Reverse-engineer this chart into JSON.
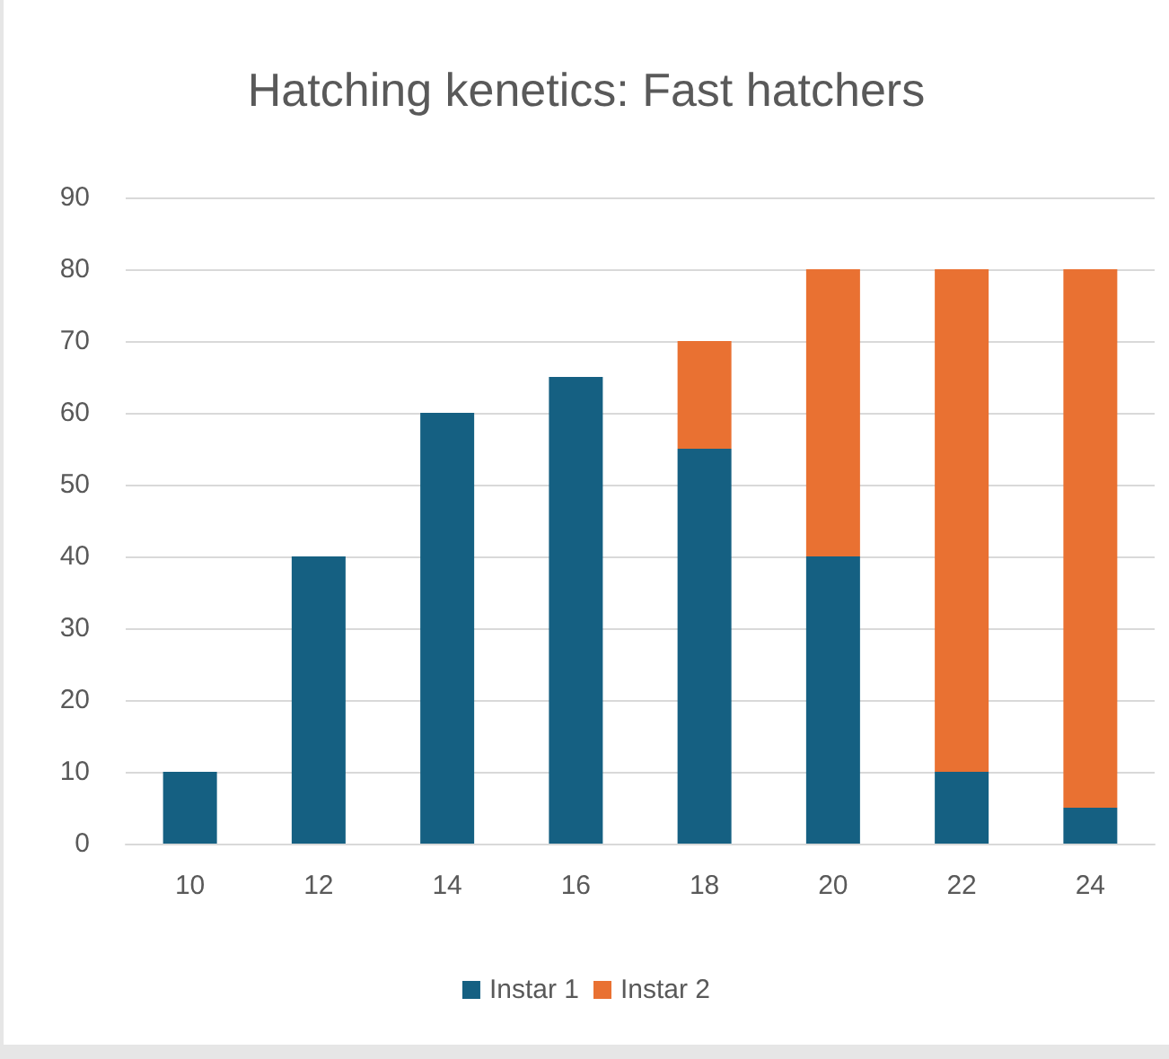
{
  "chart_data": {
    "type": "bar",
    "title": "Hatching kenetics: Fast hatchers",
    "categories": [
      "10",
      "12",
      "14",
      "16",
      "18",
      "20",
      "22",
      "24"
    ],
    "stacked": true,
    "series": [
      {
        "name": "Instar 1",
        "color": "#156082",
        "values": [
          10,
          40,
          60,
          65,
          55,
          40,
          10,
          5
        ]
      },
      {
        "name": "Instar 2",
        "color": "#e97132",
        "values": [
          null,
          null,
          null,
          null,
          15,
          40,
          70,
          75
        ]
      }
    ],
    "ylim": [
      0,
      90
    ],
    "yticks": [
      0,
      10,
      20,
      30,
      40,
      50,
      60,
      70,
      80,
      90
    ],
    "grid": "y",
    "legend": "bottom"
  }
}
